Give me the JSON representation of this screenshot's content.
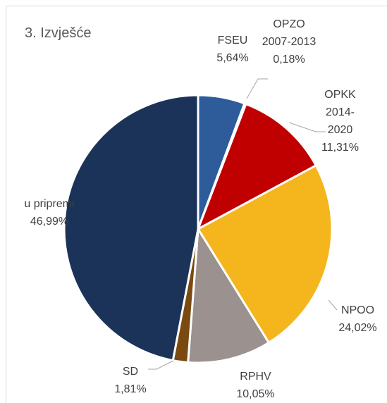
{
  "chart_data": {
    "type": "pie",
    "title": "3. Izvješće",
    "categories": [
      "FSEU",
      "OPZO 2007-2013",
      "OPKK 2014-2020",
      "NPOO",
      "RPHV",
      "SD",
      "u pripremi"
    ],
    "values": [
      5.64,
      0.18,
      11.31,
      24.02,
      10.05,
      1.81,
      46.99
    ],
    "value_labels": [
      "5,64%",
      "0,18%",
      "11,31%",
      "24,02%",
      "10,05%",
      "1,81%",
      "46,99%"
    ],
    "colors": [
      "#2e5c9a",
      "#a5a5a5",
      "#c00000",
      "#f5b51c",
      "#9b918e",
      "#7a4a10",
      "#1b3358"
    ]
  }
}
